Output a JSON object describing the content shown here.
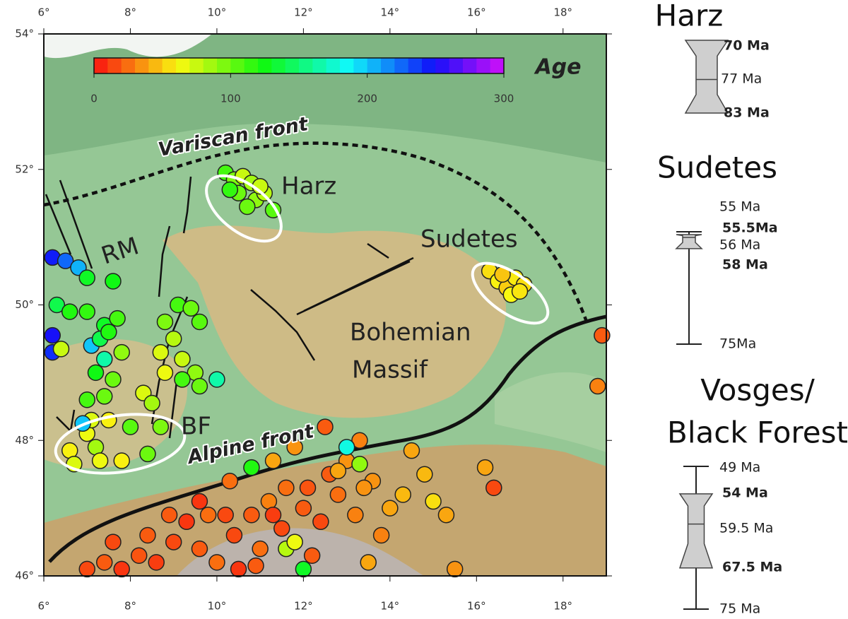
{
  "map": {
    "lonlim": [
      6,
      19
    ],
    "latlim": [
      46,
      54
    ],
    "lonticks": [
      {
        "value": 6,
        "label": "6°"
      },
      {
        "value": 8,
        "label": "8°"
      },
      {
        "value": 10,
        "label": "10°"
      },
      {
        "value": 12,
        "label": "12°"
      },
      {
        "value": 14,
        "label": "14°"
      },
      {
        "value": 16,
        "label": "16°"
      },
      {
        "value": 18,
        "label": "18°"
      }
    ],
    "latticks": [
      {
        "value": 46,
        "label": "46°"
      },
      {
        "value": 48,
        "label": "48°"
      },
      {
        "value": 50,
        "label": "50°"
      },
      {
        "value": 52,
        "label": "52°"
      },
      {
        "value": 54,
        "label": "54°"
      }
    ],
    "colorbar": {
      "label": "Age",
      "range": [
        0,
        300
      ],
      "ticks": [
        0,
        100,
        200,
        300
      ]
    },
    "annotations": {
      "variscan": "Variscan front",
      "harz": "Harz",
      "rm": "RM",
      "sudetes": "Sudetes",
      "bohemian": "Bohemian",
      "massif": "Massif",
      "bf": "BF",
      "alpine": "Alpine front"
    },
    "points": {
      "lon": [
        10.2,
        10.4,
        10.6,
        10.8,
        10.5,
        10.9,
        11.1,
        11.3,
        10.3,
        10.7,
        11.0,
        16.3,
        16.5,
        16.7,
        16.9,
        17.1,
        16.8,
        16.6,
        17.0,
        6.2,
        6.5,
        6.8,
        7.0,
        7.6,
        6.3,
        6.6,
        7.0,
        7.4,
        7.7,
        6.2,
        6.2,
        6.4,
        7.1,
        7.3,
        7.5,
        7.4,
        7.8,
        7.2,
        7.6,
        7.0,
        7.4,
        9.1,
        9.4,
        9.6,
        8.8,
        9.0,
        8.7,
        9.2,
        9.5,
        9.2,
        9.6,
        8.8,
        10.0,
        8.3,
        8.5,
        6.6,
        7.0,
        7.2,
        7.5,
        7.3,
        7.8,
        8.0,
        8.4,
        6.7,
        7.1,
        8.7,
        6.9,
        7.0,
        7.4,
        7.8,
        8.2,
        8.6,
        9.0,
        9.3,
        9.6,
        10.0,
        10.4,
        10.8,
        11.2,
        11.6,
        12.0,
        12.4,
        12.8,
        13.2,
        13.6,
        14.0,
        14.3,
        11.0,
        11.5,
        12.2,
        10.5,
        9.8,
        8.4,
        7.6,
        12.6,
        13.0,
        13.3,
        13.0,
        13.3,
        11.8,
        11.3,
        10.8,
        10.3,
        12.8,
        14.5,
        14.8,
        15.0,
        15.3,
        15.5,
        12.0,
        11.6,
        11.8,
        13.8,
        13.5,
        10.9,
        12.5,
        16.2,
        16.4,
        18.9,
        18.8,
        9.6,
        10.2,
        11.3,
        12.1,
        13.4,
        8.9
      ],
      "lat": [
        51.95,
        51.85,
        51.9,
        51.8,
        51.65,
        51.55,
        51.65,
        51.4,
        51.7,
        51.45,
        51.75,
        50.5,
        50.35,
        50.25,
        50.4,
        50.3,
        50.15,
        50.45,
        50.2,
        50.7,
        50.65,
        50.55,
        50.4,
        50.35,
        50.0,
        49.9,
        49.9,
        49.7,
        49.8,
        49.55,
        49.3,
        49.35,
        49.4,
        49.5,
        49.6,
        49.2,
        49.3,
        49.0,
        48.9,
        48.6,
        48.65,
        50.0,
        49.95,
        49.75,
        49.75,
        49.5,
        49.3,
        49.2,
        49.0,
        48.9,
        48.8,
        49.0,
        48.9,
        48.7,
        48.55,
        47.85,
        48.1,
        47.9,
        48.3,
        47.7,
        47.7,
        48.2,
        47.8,
        47.65,
        48.3,
        48.2,
        48.25,
        46.1,
        46.2,
        46.1,
        46.3,
        46.2,
        46.5,
        46.8,
        46.4,
        46.2,
        46.6,
        46.9,
        47.1,
        47.3,
        47.0,
        46.8,
        47.2,
        46.9,
        47.4,
        47.0,
        47.2,
        46.4,
        46.7,
        46.3,
        46.1,
        46.9,
        46.6,
        46.5,
        47.5,
        47.7,
        48.0,
        47.9,
        47.65,
        47.9,
        47.7,
        47.6,
        47.4,
        47.55,
        47.85,
        47.5,
        47.1,
        46.9,
        46.1,
        46.1,
        46.4,
        46.5,
        46.6,
        46.2,
        46.15,
        48.2,
        47.6,
        47.3,
        49.55,
        48.8,
        47.1,
        46.9,
        46.9,
        47.3,
        47.3,
        46.9
      ],
      "age": [
        110,
        95,
        75,
        85,
        100,
        90,
        80,
        105,
        115,
        100,
        75,
        55,
        60,
        50,
        58,
        55,
        62,
        48,
        57,
        245,
        225,
        205,
        130,
        125,
        140,
        120,
        115,
        130,
        110,
        250,
        240,
        75,
        200,
        140,
        120,
        165,
        90,
        125,
        100,
        110,
        100,
        110,
        100,
        105,
        95,
        80,
        70,
        75,
        90,
        110,
        100,
        65,
        165,
        70,
        85,
        60,
        65,
        85,
        60,
        65,
        60,
        105,
        100,
        70,
        70,
        95,
        200,
        15,
        20,
        10,
        18,
        12,
        15,
        10,
        20,
        25,
        15,
        20,
        30,
        25,
        20,
        15,
        25,
        30,
        35,
        40,
        45,
        25,
        15,
        20,
        10,
        25,
        20,
        15,
        20,
        35,
        30,
        180,
        90,
        35,
        40,
        120,
        25,
        40,
        40,
        45,
        55,
        40,
        35,
        130,
        80,
        65,
        30,
        40,
        20,
        20,
        40,
        15,
        20,
        30,
        10,
        15,
        12,
        18,
        35,
        20
      ]
    }
  },
  "panels": [
    {
      "title": [
        "Harz"
      ],
      "stats": [
        {
          "value": 70,
          "label": "70 Ma",
          "bold": true
        },
        {
          "value": 77,
          "label": "77 Ma",
          "bold": false
        },
        {
          "value": 83,
          "label": "83 Ma",
          "bold": true
        }
      ]
    },
    {
      "title": [
        "Sudetes"
      ],
      "stats": [
        {
          "value": 55,
          "label": "55 Ma",
          "bold": false
        },
        {
          "value": 55.5,
          "label": "55.5Ma",
          "bold": true
        },
        {
          "value": 56,
          "label": "56 Ma",
          "bold": false
        },
        {
          "value": 58,
          "label": "58 Ma",
          "bold": true
        },
        {
          "value": 75,
          "label": "75Ma",
          "bold": false
        }
      ]
    },
    {
      "title": [
        "Vosges/",
        "Black Forest"
      ],
      "stats": [
        {
          "value": 49,
          "label": "49 Ma",
          "bold": false
        },
        {
          "value": 54,
          "label": "54 Ma",
          "bold": true
        },
        {
          "value": 59.5,
          "label": "59.5 Ma",
          "bold": false
        },
        {
          "value": 67.5,
          "label": "67.5 Ma",
          "bold": true
        },
        {
          "value": 75,
          "label": "75 Ma",
          "bold": false
        }
      ]
    }
  ]
}
